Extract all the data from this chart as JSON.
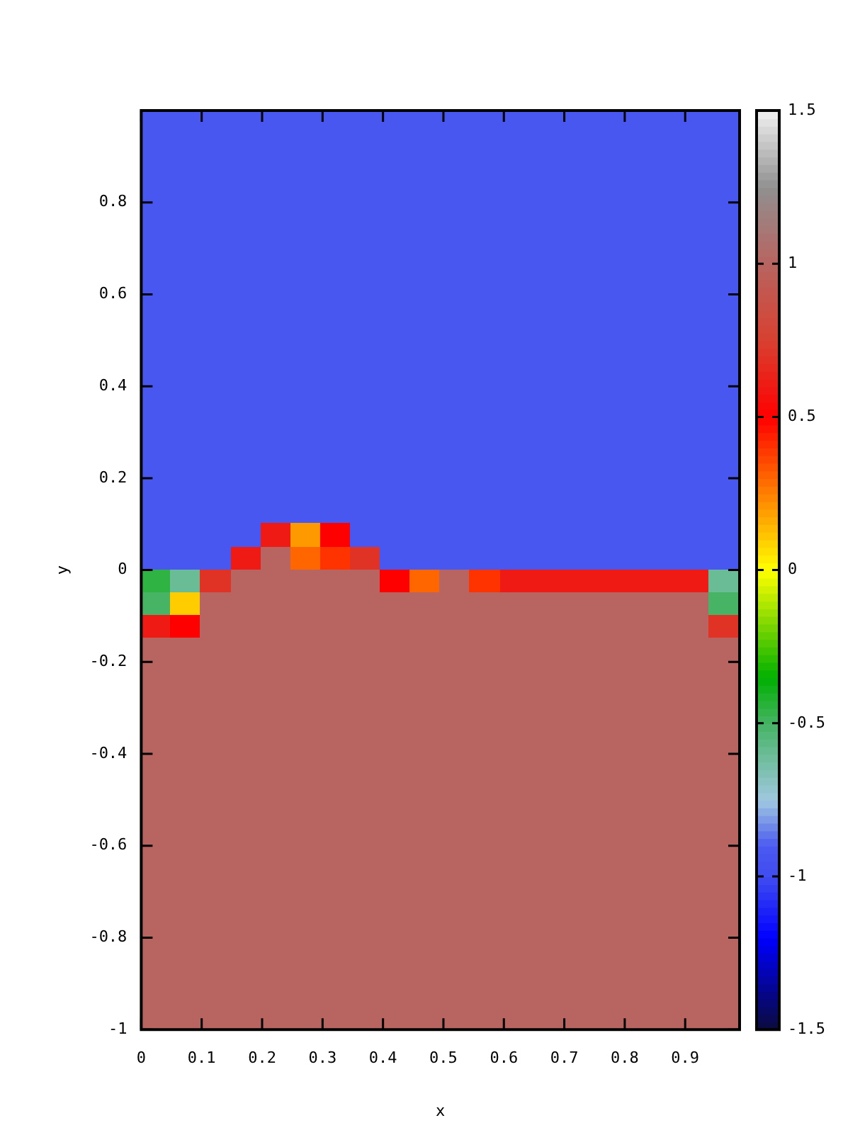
{
  "chart_data": {
    "type": "heatmap",
    "xlabel": "x",
    "ylabel": "y",
    "xlim": [
      0,
      0.99
    ],
    "xticks": [
      0,
      0.1,
      0.2,
      0.3,
      0.4,
      0.5,
      0.6,
      0.7,
      0.8,
      0.9
    ],
    "ylim": [
      -1,
      1
    ],
    "yticks": [
      -1,
      -0.8,
      -0.6,
      -0.4,
      -0.2,
      0,
      0.2,
      0.4,
      0.6,
      0.8
    ],
    "clim": [
      -1.5,
      1.5
    ],
    "cticks": [
      -1.5,
      -1,
      -0.5,
      0,
      0.5,
      1,
      1.5
    ],
    "cells": [
      [
        -0.92,
        -0.92,
        -0.92,
        -0.92,
        -0.92,
        -0.92,
        -0.92,
        -0.92,
        -0.92,
        -0.92,
        -0.92,
        -0.92,
        -0.92,
        -0.92,
        -0.92,
        -0.92,
        -0.92,
        -0.92,
        -0.92,
        -0.92
      ],
      [
        -0.92,
        -0.92,
        -0.92,
        -0.92,
        -0.92,
        -0.92,
        -0.92,
        -0.92,
        -0.92,
        -0.92,
        -0.92,
        -0.92,
        -0.92,
        -0.92,
        -0.92,
        -0.92,
        -0.92,
        -0.92,
        -0.92,
        -0.92
      ],
      [
        -0.92,
        -0.92,
        -0.92,
        -0.92,
        -0.92,
        -0.92,
        -0.92,
        -0.92,
        -0.92,
        -0.92,
        -0.92,
        -0.92,
        -0.92,
        -0.92,
        -0.92,
        -0.92,
        -0.92,
        -0.92,
        -0.92,
        -0.92
      ],
      [
        -0.92,
        -0.92,
        -0.92,
        -0.92,
        -0.92,
        -0.92,
        -0.92,
        -0.92,
        -0.92,
        -0.92,
        -0.92,
        -0.92,
        -0.92,
        -0.92,
        -0.92,
        -0.92,
        -0.92,
        -0.92,
        -0.92,
        -0.92
      ],
      [
        -0.92,
        -0.92,
        -0.92,
        -0.92,
        -0.92,
        -0.92,
        -0.92,
        -0.92,
        -0.92,
        -0.92,
        -0.92,
        -0.92,
        -0.92,
        -0.92,
        -0.92,
        -0.92,
        -0.92,
        -0.92,
        -0.92,
        -0.92
      ],
      [
        -0.92,
        -0.92,
        -0.92,
        -0.92,
        -0.92,
        -0.92,
        -0.92,
        -0.92,
        -0.92,
        -0.92,
        -0.92,
        -0.92,
        -0.92,
        -0.92,
        -0.92,
        -0.92,
        -0.92,
        -0.92,
        -0.92,
        -0.92
      ],
      [
        -0.92,
        -0.92,
        -0.92,
        -0.92,
        -0.92,
        -0.92,
        -0.92,
        -0.92,
        -0.92,
        -0.92,
        -0.92,
        -0.92,
        -0.92,
        -0.92,
        -0.92,
        -0.92,
        -0.92,
        -0.92,
        -0.92,
        -0.92
      ],
      [
        -0.92,
        -0.92,
        -0.92,
        -0.92,
        -0.92,
        -0.92,
        -0.92,
        -0.92,
        -0.92,
        -0.92,
        -0.92,
        -0.92,
        -0.92,
        -0.92,
        -0.92,
        -0.92,
        -0.92,
        -0.92,
        -0.92,
        -0.92
      ],
      [
        -0.92,
        -0.92,
        -0.92,
        -0.92,
        -0.92,
        -0.92,
        -0.92,
        -0.92,
        -0.92,
        -0.92,
        -0.92,
        -0.92,
        -0.92,
        -0.92,
        -0.92,
        -0.92,
        -0.92,
        -0.92,
        -0.92,
        -0.92
      ],
      [
        -0.92,
        -0.92,
        -0.92,
        -0.92,
        -0.92,
        -0.92,
        -0.92,
        -0.92,
        -0.92,
        -0.92,
        -0.92,
        -0.92,
        -0.92,
        -0.92,
        -0.92,
        -0.92,
        -0.92,
        -0.92,
        -0.92,
        -0.92
      ],
      [
        -0.92,
        -0.92,
        -0.92,
        -0.92,
        -0.92,
        -0.92,
        -0.92,
        -0.92,
        -0.92,
        -0.92,
        -0.92,
        -0.92,
        -0.92,
        -0.92,
        -0.92,
        -0.92,
        -0.92,
        -0.92,
        -0.92,
        -0.92
      ],
      [
        -0.92,
        -0.92,
        -0.92,
        -0.92,
        -0.92,
        -0.92,
        -0.92,
        -0.92,
        -0.92,
        -0.92,
        -0.92,
        -0.92,
        -0.92,
        -0.92,
        -0.92,
        -0.92,
        -0.92,
        -0.92,
        -0.92,
        -0.92
      ],
      [
        -0.92,
        -0.92,
        -0.92,
        -0.92,
        -0.92,
        -0.92,
        -0.92,
        -0.92,
        -0.92,
        -0.92,
        -0.92,
        -0.92,
        -0.92,
        -0.92,
        -0.92,
        -0.92,
        -0.92,
        -0.92,
        -0.92,
        -0.92
      ],
      [
        -0.92,
        -0.92,
        -0.92,
        -0.92,
        -0.92,
        -0.92,
        -0.92,
        -0.92,
        -0.92,
        -0.92,
        -0.92,
        -0.92,
        -0.92,
        -0.92,
        -0.92,
        -0.92,
        -0.92,
        -0.92,
        -0.92,
        -0.92
      ],
      [
        -0.92,
        -0.92,
        -0.92,
        -0.92,
        -0.92,
        -0.92,
        -0.92,
        -0.92,
        -0.92,
        -0.92,
        -0.92,
        -0.92,
        -0.92,
        -0.92,
        -0.92,
        -0.92,
        -0.92,
        -0.92,
        -0.92,
        -0.92
      ],
      [
        -0.92,
        -0.92,
        -0.92,
        -0.92,
        -0.92,
        -0.92,
        -0.92,
        -0.92,
        -0.92,
        -0.92,
        -0.92,
        -0.92,
        -0.92,
        -0.92,
        -0.92,
        -0.92,
        -0.92,
        -0.92,
        -0.92,
        -0.92
      ],
      [
        -0.92,
        -0.92,
        -0.92,
        -0.92,
        -0.92,
        -0.92,
        -0.92,
        -0.92,
        -0.92,
        -0.92,
        -0.92,
        -0.92,
        -0.92,
        -0.92,
        -0.92,
        -0.92,
        -0.92,
        -0.92,
        -0.92,
        -0.92
      ],
      [
        -0.92,
        -0.92,
        -0.92,
        -0.92,
        -0.92,
        -0.92,
        -0.92,
        -0.92,
        -0.92,
        -0.92,
        -0.92,
        -0.92,
        -0.92,
        -0.92,
        -0.92,
        -0.92,
        -0.92,
        -0.92,
        -0.92,
        -0.92
      ],
      [
        -0.92,
        -0.92,
        -0.92,
        -0.92,
        0.6,
        0.2,
        0.5,
        -0.92,
        -0.92,
        -0.92,
        -0.92,
        -0.92,
        -0.92,
        -0.92,
        -0.92,
        -0.92,
        -0.92,
        -0.92,
        -0.92,
        -0.92
      ],
      [
        -0.92,
        -0.92,
        -0.92,
        0.6,
        1,
        0.3,
        0.4,
        0.7,
        -0.92,
        -0.92,
        -0.92,
        -0.92,
        -0.92,
        -0.92,
        -0.92,
        -0.92,
        -0.92,
        -0.92,
        -0.92,
        -0.92
      ],
      [
        -0.45,
        -0.6,
        0.7,
        1,
        1,
        1,
        1,
        1,
        0.5,
        0.3,
        1,
        0.4,
        0.6,
        0.6,
        0.6,
        0.6,
        0.6,
        0.6,
        0.6,
        -0.6
      ],
      [
        -0.5,
        0.1,
        1,
        1,
        1,
        1,
        1,
        1,
        1,
        1,
        1,
        1,
        1,
        1,
        1,
        1,
        1,
        1,
        1,
        -0.5
      ],
      [
        0.6,
        0.5,
        1,
        1,
        1,
        1,
        1,
        1,
        1,
        1,
        1,
        1,
        1,
        1,
        1,
        1,
        1,
        1,
        1,
        0.7
      ],
      [
        1,
        1,
        1,
        1,
        1,
        1,
        1,
        1,
        1,
        1,
        1,
        1,
        1,
        1,
        1,
        1,
        1,
        1,
        1,
        1
      ],
      [
        1,
        1,
        1,
        1,
        1,
        1,
        1,
        1,
        1,
        1,
        1,
        1,
        1,
        1,
        1,
        1,
        1,
        1,
        1,
        1
      ],
      [
        1,
        1,
        1,
        1,
        1,
        1,
        1,
        1,
        1,
        1,
        1,
        1,
        1,
        1,
        1,
        1,
        1,
        1,
        1,
        1
      ],
      [
        1,
        1,
        1,
        1,
        1,
        1,
        1,
        1,
        1,
        1,
        1,
        1,
        1,
        1,
        1,
        1,
        1,
        1,
        1,
        1
      ],
      [
        1,
        1,
        1,
        1,
        1,
        1,
        1,
        1,
        1,
        1,
        1,
        1,
        1,
        1,
        1,
        1,
        1,
        1,
        1,
        1
      ],
      [
        1,
        1,
        1,
        1,
        1,
        1,
        1,
        1,
        1,
        1,
        1,
        1,
        1,
        1,
        1,
        1,
        1,
        1,
        1,
        1
      ],
      [
        1,
        1,
        1,
        1,
        1,
        1,
        1,
        1,
        1,
        1,
        1,
        1,
        1,
        1,
        1,
        1,
        1,
        1,
        1,
        1
      ],
      [
        1,
        1,
        1,
        1,
        1,
        1,
        1,
        1,
        1,
        1,
        1,
        1,
        1,
        1,
        1,
        1,
        1,
        1,
        1,
        1
      ],
      [
        1,
        1,
        1,
        1,
        1,
        1,
        1,
        1,
        1,
        1,
        1,
        1,
        1,
        1,
        1,
        1,
        1,
        1,
        1,
        1
      ],
      [
        1,
        1,
        1,
        1,
        1,
        1,
        1,
        1,
        1,
        1,
        1,
        1,
        1,
        1,
        1,
        1,
        1,
        1,
        1,
        1
      ],
      [
        1,
        1,
        1,
        1,
        1,
        1,
        1,
        1,
        1,
        1,
        1,
        1,
        1,
        1,
        1,
        1,
        1,
        1,
        1,
        1
      ],
      [
        1,
        1,
        1,
        1,
        1,
        1,
        1,
        1,
        1,
        1,
        1,
        1,
        1,
        1,
        1,
        1,
        1,
        1,
        1,
        1
      ],
      [
        1,
        1,
        1,
        1,
        1,
        1,
        1,
        1,
        1,
        1,
        1,
        1,
        1,
        1,
        1,
        1,
        1,
        1,
        1,
        1
      ],
      [
        1,
        1,
        1,
        1,
        1,
        1,
        1,
        1,
        1,
        1,
        1,
        1,
        1,
        1,
        1,
        1,
        1,
        1,
        1,
        1
      ],
      [
        1,
        1,
        1,
        1,
        1,
        1,
        1,
        1,
        1,
        1,
        1,
        1,
        1,
        1,
        1,
        1,
        1,
        1,
        1,
        1
      ],
      [
        1,
        1,
        1,
        1,
        1,
        1,
        1,
        1,
        1,
        1,
        1,
        1,
        1,
        1,
        1,
        1,
        1,
        1,
        1,
        1
      ],
      [
        1,
        1,
        1,
        1,
        1,
        1,
        1,
        1,
        1,
        1,
        1,
        1,
        1,
        1,
        1,
        1,
        1,
        1,
        1,
        1
      ]
    ]
  }
}
